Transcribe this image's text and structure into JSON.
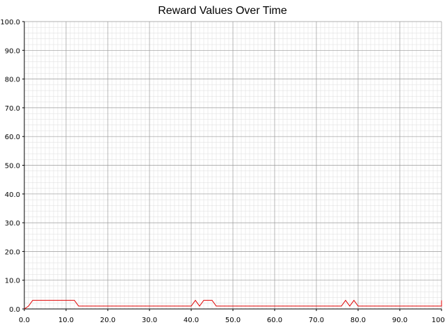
{
  "chart_data": {
    "type": "line",
    "title": "Reward Values Over Time",
    "xlabel": "",
    "ylabel": "",
    "xlim": [
      0,
      100
    ],
    "ylim": [
      0,
      100
    ],
    "x_ticks": [
      "0.0",
      "10.0",
      "20.0",
      "30.0",
      "40.0",
      "50.0",
      "60.0",
      "70.0",
      "80.0",
      "90.0",
      "100.0"
    ],
    "y_ticks": [
      "0.0",
      "10.0",
      "20.0",
      "30.0",
      "40.0",
      "50.0",
      "60.0",
      "70.0",
      "80.0",
      "90.0",
      "100.0"
    ],
    "grid": true,
    "minor_grid": true,
    "legend": "none",
    "line_color": "#e00000",
    "series": [
      {
        "x": [
          0,
          1,
          2,
          3,
          4,
          5,
          6,
          7,
          8,
          9,
          10,
          11,
          12,
          13,
          14,
          15,
          16,
          17,
          18,
          19,
          20,
          21,
          22,
          23,
          24,
          25,
          26,
          27,
          28,
          29,
          30,
          31,
          32,
          33,
          34,
          35,
          36,
          37,
          38,
          39,
          40,
          41,
          42,
          43,
          44,
          45,
          46,
          47,
          48,
          49,
          50,
          51,
          52,
          53,
          54,
          55,
          56,
          57,
          58,
          59,
          60,
          61,
          62,
          63,
          64,
          65,
          66,
          67,
          68,
          69,
          70,
          71,
          72,
          73,
          74,
          75,
          76,
          77,
          78,
          79,
          80,
          81,
          82,
          83,
          84,
          85,
          86,
          87,
          88,
          89,
          90,
          91,
          92,
          93,
          94,
          95,
          96,
          97,
          98,
          99,
          100,
          100
        ],
        "values": [
          0,
          1,
          3,
          3,
          3,
          3,
          3,
          3,
          3,
          3,
          3,
          3,
          3,
          1,
          1,
          1,
          1,
          1,
          1,
          1,
          1,
          1,
          1,
          1,
          1,
          1,
          1,
          1,
          1,
          1,
          1,
          1,
          1,
          1,
          1,
          1,
          1,
          1,
          1,
          1,
          1,
          3,
          1,
          3,
          3,
          3,
          1,
          1,
          1,
          1,
          1,
          1,
          1,
          1,
          1,
          1,
          1,
          1,
          1,
          1,
          1,
          1,
          1,
          1,
          1,
          1,
          1,
          1,
          1,
          1,
          1,
          1,
          1,
          1,
          1,
          1,
          1,
          3,
          1,
          3,
          1,
          1,
          1,
          1,
          1,
          1,
          1,
          1,
          1,
          1,
          1,
          1,
          1,
          1,
          1,
          1,
          1,
          1,
          1,
          1,
          1,
          3
        ]
      }
    ]
  }
}
